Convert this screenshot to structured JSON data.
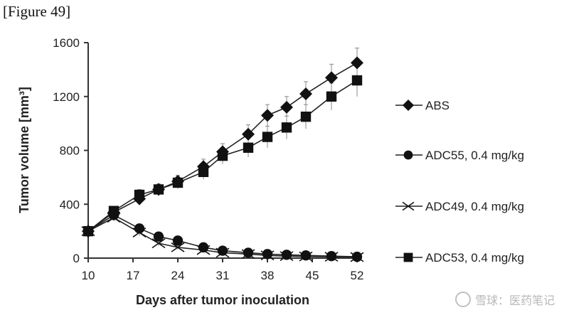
{
  "figure_label": "[Figure 49]",
  "watermark_text": "雪球：医药笔记",
  "chart_data": {
    "type": "line",
    "title": "",
    "xlabel": "Days after tumor inoculation",
    "ylabel": "Tumor volume [mm³]",
    "xlim": [
      10,
      52
    ],
    "ylim": [
      0,
      1600
    ],
    "xticks": [
      10,
      17,
      24,
      31,
      38,
      45,
      52
    ],
    "yticks": [
      0,
      400,
      800,
      1200,
      1600
    ],
    "grid": false,
    "legend_position": "right",
    "series": [
      {
        "name": "ABS",
        "marker": "diamond",
        "x": [
          10,
          14,
          18,
          21,
          24,
          28,
          31,
          35,
          38,
          41,
          44,
          48,
          52
        ],
        "y": [
          200,
          340,
          440,
          510,
          570,
          680,
          790,
          920,
          1060,
          1120,
          1220,
          1340,
          1450
        ],
        "err": [
          20,
          30,
          40,
          40,
          45,
          55,
          60,
          70,
          80,
          80,
          90,
          100,
          110
        ]
      },
      {
        "name": "ADC55, 0.4 mg/kg",
        "marker": "circle",
        "x": [
          10,
          14,
          18,
          21,
          24,
          28,
          31,
          35,
          38,
          41,
          44,
          48,
          52
        ],
        "y": [
          200,
          320,
          220,
          160,
          130,
          80,
          55,
          40,
          30,
          25,
          20,
          15,
          10
        ],
        "err": [
          20,
          25,
          25,
          20,
          18,
          12,
          10,
          8,
          6,
          5,
          5,
          4,
          4
        ]
      },
      {
        "name": "ADC49, 0.4 mg/kg",
        "marker": "x",
        "x": [
          10,
          14,
          18,
          21,
          24,
          28,
          31,
          35,
          38,
          41,
          44,
          48,
          52
        ],
        "y": [
          200,
          300,
          190,
          110,
          80,
          60,
          40,
          30,
          20,
          15,
          12,
          10,
          8
        ],
        "err": [
          20,
          25,
          25,
          18,
          15,
          10,
          8,
          6,
          5,
          4,
          4,
          3,
          3
        ]
      },
      {
        "name": "ADC53, 0.4 mg/kg",
        "marker": "square",
        "x": [
          10,
          14,
          18,
          21,
          24,
          28,
          31,
          35,
          38,
          41,
          44,
          48,
          52
        ],
        "y": [
          200,
          350,
          470,
          510,
          560,
          640,
          760,
          820,
          900,
          970,
          1050,
          1200,
          1320
        ],
        "err": [
          20,
          30,
          40,
          40,
          45,
          55,
          60,
          70,
          80,
          85,
          90,
          100,
          120
        ]
      }
    ]
  }
}
